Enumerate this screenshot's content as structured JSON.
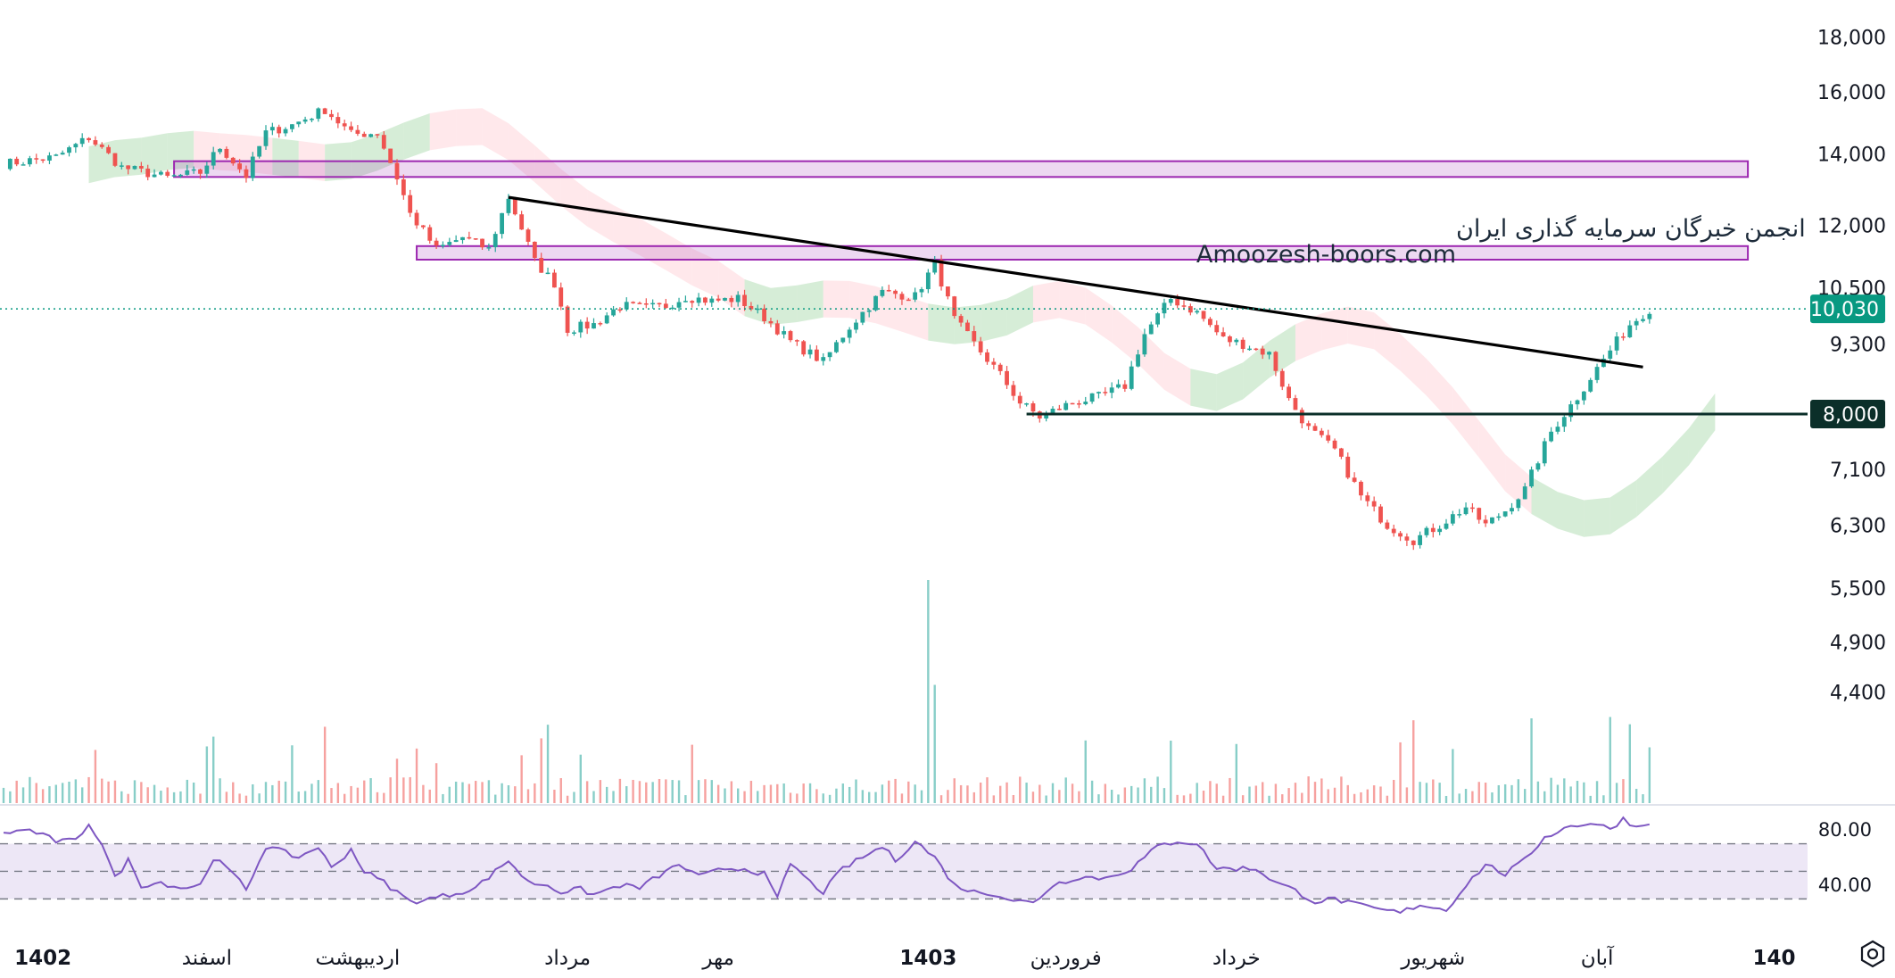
{
  "chart_data": {
    "type": "candlestick",
    "watermark": {
      "line1": "انجمن خبرگان سرمایه گذاری ایران",
      "line2": "Amoozesh-boors.com"
    },
    "y_axis": {
      "scale": "log",
      "ticks": [
        18000,
        16000,
        14000,
        12000,
        10500,
        9300,
        7100,
        6300,
        5500,
        4900,
        4400
      ],
      "tick_labels": [
        "18,000",
        "16,000",
        "14,000",
        "12,000",
        "10,500",
        "9,300",
        "7,100",
        "6,300",
        "5,500",
        "4,900",
        "4,400"
      ],
      "ylim": [
        3600,
        18400
      ]
    },
    "x_axis": {
      "labels": [
        {
          "text": "1402",
          "bold": true,
          "idx": 6
        },
        {
          "text": "اسفند",
          "bold": false,
          "idx": 31
        },
        {
          "text": "اردیبهشت",
          "bold": false,
          "idx": 54
        },
        {
          "text": "مرداد",
          "bold": false,
          "idx": 86
        },
        {
          "text": "مهر",
          "bold": false,
          "idx": 109
        },
        {
          "text": "1403",
          "bold": true,
          "idx": 141
        },
        {
          "text": "فروردین",
          "bold": false,
          "idx": 162
        },
        {
          "text": "خرداد",
          "bold": false,
          "idx": 188
        },
        {
          "text": "شهریور",
          "bold": false,
          "idx": 218
        },
        {
          "text": "آبان",
          "bold": false,
          "idx": 243
        },
        {
          "text": "140",
          "bold": true,
          "idx": 270
        }
      ]
    },
    "last_price": {
      "value": 10030,
      "label": "10,030",
      "color": "#089981"
    },
    "support_level": {
      "value": 8000,
      "label": "8,000",
      "color": "#0b2f29"
    },
    "resistance_zones": [
      {
        "from_idx": 26,
        "to_idx": 266,
        "low": 13320,
        "high": 13780,
        "color": "#9c27b0"
      },
      {
        "from_idx": 63,
        "to_idx": 266,
        "low": 11150,
        "high": 11480,
        "color": "#9c27b0"
      }
    ],
    "trendline": {
      "from_idx": 77,
      "from_value": 12750,
      "to_idx": 250,
      "to_value": 8850,
      "color": "#000000"
    },
    "support_line": {
      "from_idx": 156,
      "to_idx": 272,
      "value": 8000
    },
    "candle_anchors": [
      [
        0,
        13700
      ],
      [
        8,
        13900
      ],
      [
        13,
        14500
      ],
      [
        18,
        13600
      ],
      [
        25,
        13300
      ],
      [
        30,
        13450
      ],
      [
        33,
        14200
      ],
      [
        37,
        13350
      ],
      [
        40,
        14650
      ],
      [
        44,
        14900
      ],
      [
        49,
        15400
      ],
      [
        53,
        14600
      ],
      [
        57,
        14650
      ],
      [
        60,
        13300
      ],
      [
        62,
        12300
      ],
      [
        66,
        11400
      ],
      [
        70,
        11700
      ],
      [
        74,
        11400
      ],
      [
        77,
        12750
      ],
      [
        81,
        11100
      ],
      [
        84,
        10600
      ],
      [
        86,
        9600
      ],
      [
        90,
        9700
      ],
      [
        94,
        10100
      ],
      [
        98,
        10050
      ],
      [
        101,
        10100
      ],
      [
        104,
        10300
      ],
      [
        108,
        10200
      ],
      [
        112,
        10250
      ],
      [
        116,
        9850
      ],
      [
        120,
        9350
      ],
      [
        125,
        8950
      ],
      [
        129,
        9650
      ],
      [
        134,
        10400
      ],
      [
        139,
        10300
      ],
      [
        142,
        11050
      ],
      [
        145,
        9800
      ],
      [
        148,
        9300
      ],
      [
        152,
        8700
      ],
      [
        155,
        8200
      ],
      [
        158,
        7950
      ],
      [
        163,
        8200
      ],
      [
        167,
        8300
      ],
      [
        171,
        8500
      ],
      [
        174,
        9500
      ],
      [
        178,
        10250
      ],
      [
        182,
        9950
      ],
      [
        186,
        9400
      ],
      [
        189,
        9300
      ],
      [
        193,
        9100
      ],
      [
        196,
        8250
      ],
      [
        199,
        7750
      ],
      [
        203,
        7400
      ],
      [
        207,
        6700
      ],
      [
        211,
        6300
      ],
      [
        215,
        6100
      ],
      [
        219,
        6300
      ],
      [
        223,
        6550
      ],
      [
        226,
        6300
      ],
      [
        229,
        6500
      ],
      [
        232,
        6800
      ],
      [
        236,
        7700
      ],
      [
        240,
        8300
      ],
      [
        244,
        9000
      ],
      [
        248,
        9700
      ],
      [
        251,
        10030
      ]
    ],
    "ichimoku_cloud": {
      "bullish_color": "#a5d6a7",
      "bearish_color": "#ffcdd2"
    },
    "volume": {
      "up_color": "#26a69a",
      "down_color": "#ef5350",
      "spikes": [
        [
          141,
          1.0
        ],
        [
          142,
          0.53
        ],
        [
          233,
          0.38
        ],
        [
          178,
          0.28
        ],
        [
          251,
          0.25
        ]
      ]
    },
    "rsi": {
      "line_color": "#7e57c2",
      "band_color": "#ede7f6",
      "upper": 70,
      "middle": 50,
      "lower": 30,
      "tick_labels": [
        "80.00",
        "40.00"
      ],
      "tick_values": [
        80,
        40
      ],
      "ylim": [
        5,
        93
      ],
      "anchors": [
        [
          0,
          78
        ],
        [
          4,
          80
        ],
        [
          8,
          72
        ],
        [
          11,
          72
        ],
        [
          13,
          85
        ],
        [
          15,
          70
        ],
        [
          17,
          45
        ],
        [
          19,
          58
        ],
        [
          21,
          40
        ],
        [
          24,
          42
        ],
        [
          27,
          38
        ],
        [
          30,
          40
        ],
        [
          32,
          60
        ],
        [
          35,
          48
        ],
        [
          37,
          37
        ],
        [
          40,
          68
        ],
        [
          42,
          65
        ],
        [
          45,
          60
        ],
        [
          48,
          68
        ],
        [
          50,
          52
        ],
        [
          53,
          66
        ],
        [
          55,
          50
        ],
        [
          58,
          42
        ],
        [
          60,
          35
        ],
        [
          62,
          28
        ],
        [
          65,
          30
        ],
        [
          68,
          33
        ],
        [
          72,
          38
        ],
        [
          75,
          50
        ],
        [
          77,
          58
        ],
        [
          80,
          42
        ],
        [
          83,
          40
        ],
        [
          85,
          35
        ],
        [
          88,
          37
        ],
        [
          90,
          33
        ],
        [
          94,
          40
        ],
        [
          97,
          38
        ],
        [
          100,
          47
        ],
        [
          103,
          55
        ],
        [
          106,
          46
        ],
        [
          110,
          52
        ],
        [
          113,
          52
        ],
        [
          116,
          48
        ],
        [
          118,
          30
        ],
        [
          120,
          56
        ],
        [
          123,
          42
        ],
        [
          125,
          35
        ],
        [
          128,
          52
        ],
        [
          131,
          60
        ],
        [
          134,
          68
        ],
        [
          136,
          58
        ],
        [
          139,
          72
        ],
        [
          142,
          60
        ],
        [
          145,
          40
        ],
        [
          148,
          35
        ],
        [
          151,
          34
        ],
        [
          154,
          29
        ],
        [
          157,
          27
        ],
        [
          160,
          40
        ],
        [
          164,
          46
        ],
        [
          168,
          45
        ],
        [
          172,
          52
        ],
        [
          176,
          68
        ],
        [
          179,
          72
        ],
        [
          182,
          70
        ],
        [
          185,
          52
        ],
        [
          188,
          52
        ],
        [
          191,
          52
        ],
        [
          194,
          42
        ],
        [
          197,
          36
        ],
        [
          200,
          28
        ],
        [
          203,
          30
        ],
        [
          206,
          26
        ],
        [
          210,
          22
        ],
        [
          213,
          20
        ],
        [
          216,
          26
        ],
        [
          220,
          22
        ],
        [
          223,
          40
        ],
        [
          226,
          55
        ],
        [
          229,
          48
        ],
        [
          232,
          58
        ],
        [
          235,
          75
        ],
        [
          239,
          83
        ],
        [
          242,
          85
        ],
        [
          245,
          81
        ],
        [
          247,
          88
        ],
        [
          249,
          82
        ],
        [
          251,
          86
        ]
      ]
    }
  }
}
